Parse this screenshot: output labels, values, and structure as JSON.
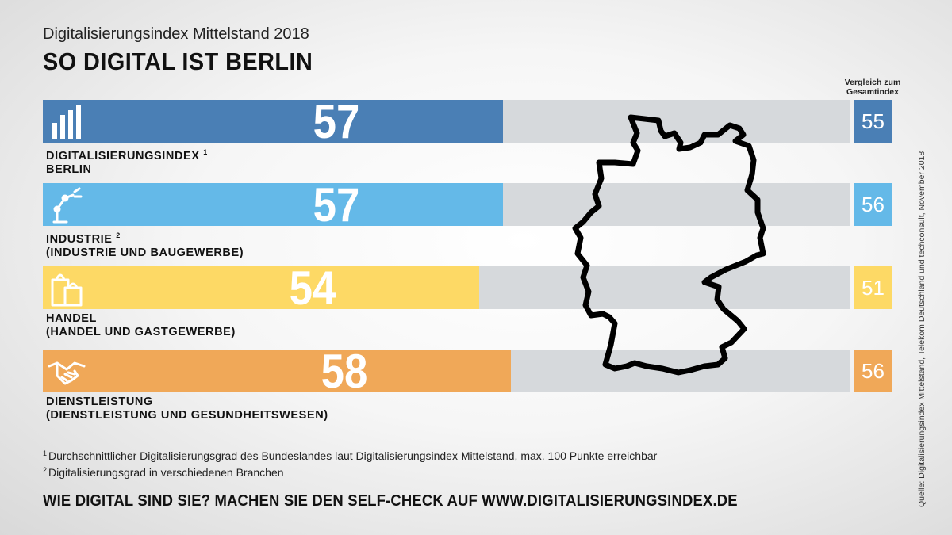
{
  "header": {
    "subtitle": "Digitalisierungsindex Mittelstand 2018",
    "title": "SO DIGITAL IST BERLIN"
  },
  "compare_header": "Vergleich zum Gesamtindex",
  "colors": {
    "track": "#d6d9dc",
    "berlin": "#4a7fb5",
    "industrie": "#64b9e8",
    "handel": "#fdd965",
    "dienstleistung": "#f0a858"
  },
  "chart_data": {
    "type": "bar",
    "orientation": "horizontal",
    "ylim": [
      0,
      100
    ],
    "categories": [
      "DIGITALISIERUNGSINDEX BERLIN",
      "INDUSTRIE (INDUSTRIE UND BAUGEWERBE)",
      "HANDEL (HANDEL UND GASTGEWERBE)",
      "DIENSTLEISTUNG (DIENSTLEISTUNG UND GESUNDHEITSWESEN)"
    ],
    "series": [
      {
        "values": [
          57,
          57,
          54,
          58
        ]
      },
      {
        "name": "Vergleich zum Gesamtindex",
        "values": [
          55,
          56,
          51,
          56
        ]
      }
    ],
    "rows": [
      {
        "key": "berlin",
        "icon": "bar-chart-icon",
        "label_line1": "DIGITALISIERUNGSINDEX",
        "label_sup": "1",
        "label_line2": "BERLIN",
        "value": 57,
        "compare": 55,
        "color": "#4a7fb5"
      },
      {
        "key": "industrie",
        "icon": "robot-arm-icon",
        "label_line1": "INDUSTRIE",
        "label_sup": "2",
        "label_line2": "(INDUSTRIE UND BAUGEWERBE)",
        "value": 57,
        "compare": 56,
        "color": "#64b9e8"
      },
      {
        "key": "handel",
        "icon": "shopping-bags-icon",
        "label_line1": "HANDEL",
        "label_sup": "",
        "label_line2": "(HANDEL UND GASTGEWERBE)",
        "value": 54,
        "compare": 51,
        "color": "#fdd965"
      },
      {
        "key": "dienstleistung",
        "icon": "handshake-icon",
        "label_line1": "DIENSTLEISTUNG",
        "label_sup": "",
        "label_line2": "(DIENSTLEISTUNG UND GESUNDHEITSWESEN)",
        "value": 58,
        "compare": 56,
        "color": "#f0a858"
      }
    ]
  },
  "map_icon": "germany-outline-icon",
  "footnotes": [
    {
      "mark": "1",
      "text": "Durchschnittlicher Digitalisierungsgrad des Bundeslandes laut Digitalisierungsindex Mittelstand, max. 100 Punkte erreichbar"
    },
    {
      "mark": "2",
      "text": "Digitalisierungsgrad in verschiedenen Branchen"
    }
  ],
  "cta": "WIE DIGITAL SIND SIE? MACHEN SIE DEN SELF-CHECK AUF WWW.DIGITALISIERUNGSINDEX.DE",
  "source": "Quelle: Digitalisierungsindex Mittelstand, Telekom Deutschland und techconsult, November 2018"
}
